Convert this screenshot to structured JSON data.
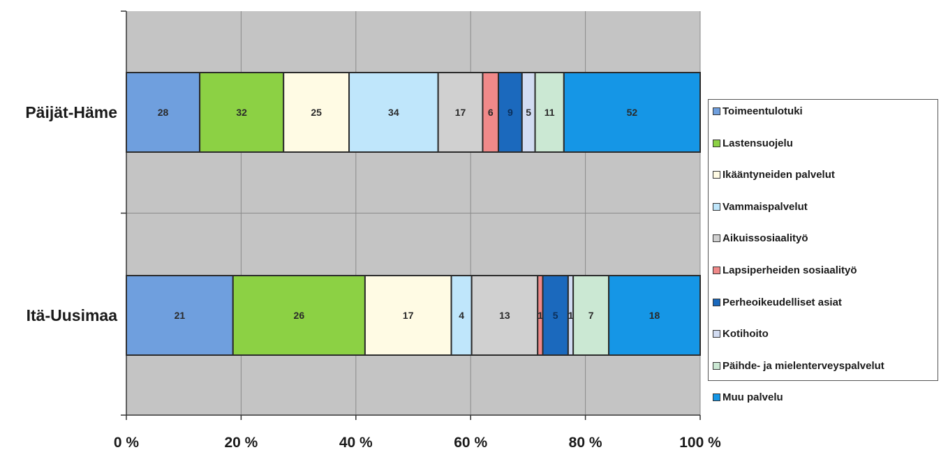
{
  "chart_data": {
    "type": "bar",
    "orientation": "horizontal",
    "stacked": "percent",
    "categories": [
      "Päijät-Häme",
      "Itä-Uusimaa"
    ],
    "series": [
      {
        "name": "Toimeentulotuki",
        "color": "#6f9fde",
        "values": [
          28,
          21
        ],
        "labels": [
          "28",
          "21"
        ]
      },
      {
        "name": "Lastensuojelu",
        "color": "#8cd144",
        "values": [
          32,
          26
        ],
        "labels": [
          "32",
          "26"
        ]
      },
      {
        "name": "Ikääntyneiden palvelut",
        "color": "#fffbe4",
        "values": [
          25,
          17
        ],
        "labels": [
          "25",
          "17"
        ]
      },
      {
        "name": "Vammaispalvelut",
        "color": "#bfe6fb",
        "values": [
          34,
          4
        ],
        "labels": [
          "34",
          "4"
        ]
      },
      {
        "name": "Aikuissosiaalityö",
        "color": "#d0d0d0",
        "values": [
          17,
          13
        ],
        "labels": [
          "17",
          "13"
        ]
      },
      {
        "name": "Lapsiperheiden sosiaalityö",
        "color": "#f08989",
        "values": [
          6,
          1
        ],
        "labels": [
          "6",
          "1"
        ]
      },
      {
        "name": "Perheoikeudelliset asiat",
        "color": "#1b69bd",
        "values": [
          9,
          5
        ],
        "labels": [
          "9",
          "5"
        ]
      },
      {
        "name": "Kotihoito",
        "color": "#d2dcf2",
        "values": [
          5,
          1
        ],
        "labels": [
          "5",
          "1"
        ]
      },
      {
        "name": "Päihde- ja mielenterveyspalvelut",
        "color": "#cbe8d3",
        "values": [
          11,
          7
        ],
        "labels": [
          "11",
          "7"
        ]
      },
      {
        "name": "Muu palvelu",
        "color": "#1596e6",
        "values": [
          52,
          18
        ],
        "labels": [
          "52",
          "18"
        ]
      }
    ],
    "x_ticks": [
      "0 %",
      "20 %",
      "40 %",
      "60 %",
      "80 %",
      "100 %"
    ],
    "xlim": [
      0,
      100
    ],
    "grid": true,
    "legend_position": "right",
    "plot_background": "#c4c4c4"
  }
}
